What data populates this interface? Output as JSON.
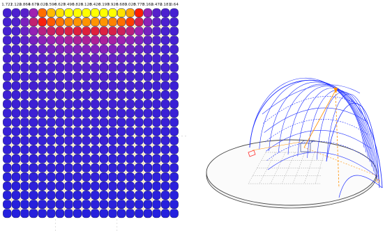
{
  "heatmap": {
    "top_labels": [
      "1.722",
      "1.122",
      "0.864",
      "0.679",
      "0.021",
      "0.596",
      "0.627",
      "0.496",
      "0.826",
      "0.128",
      "0.426",
      "0.197",
      "0.926",
      "0.680",
      "0.028",
      "0.773",
      "0.162",
      "0.472",
      "0.181",
      "0.64"
    ],
    "values": [
      [
        0.1,
        0.12,
        0.15,
        0.35,
        0.7,
        0.78,
        0.82,
        0.85,
        0.86,
        0.86,
        0.86,
        0.86,
        0.85,
        0.82,
        0.76,
        0.62,
        0.32,
        0.15,
        0.12,
        0.1
      ],
      [
        0.1,
        0.13,
        0.25,
        0.45,
        0.6,
        0.68,
        0.71,
        0.73,
        0.74,
        0.74,
        0.74,
        0.74,
        0.72,
        0.7,
        0.65,
        0.5,
        0.3,
        0.18,
        0.12,
        0.1
      ],
      [
        0.1,
        0.12,
        0.2,
        0.32,
        0.42,
        0.47,
        0.5,
        0.52,
        0.53,
        0.53,
        0.53,
        0.52,
        0.51,
        0.48,
        0.43,
        0.35,
        0.24,
        0.16,
        0.11,
        0.1
      ],
      [
        0.1,
        0.11,
        0.16,
        0.24,
        0.3,
        0.34,
        0.36,
        0.38,
        0.39,
        0.39,
        0.39,
        0.38,
        0.37,
        0.35,
        0.31,
        0.26,
        0.19,
        0.14,
        0.11,
        0.1
      ],
      [
        0.1,
        0.11,
        0.13,
        0.17,
        0.21,
        0.24,
        0.26,
        0.27,
        0.28,
        0.28,
        0.28,
        0.28,
        0.27,
        0.25,
        0.22,
        0.19,
        0.15,
        0.12,
        0.1,
        0.1
      ],
      [
        0.1,
        0.1,
        0.11,
        0.13,
        0.15,
        0.17,
        0.18,
        0.19,
        0.2,
        0.2,
        0.2,
        0.2,
        0.19,
        0.18,
        0.16,
        0.14,
        0.12,
        0.11,
        0.1,
        0.1
      ],
      [
        0.09,
        0.1,
        0.1,
        0.11,
        0.12,
        0.13,
        0.14,
        0.15,
        0.15,
        0.15,
        0.15,
        0.15,
        0.15,
        0.14,
        0.12,
        0.11,
        0.1,
        0.1,
        0.1,
        0.09
      ],
      [
        0.09,
        0.09,
        0.1,
        0.1,
        0.11,
        0.11,
        0.12,
        0.12,
        0.13,
        0.13,
        0.13,
        0.13,
        0.12,
        0.12,
        0.11,
        0.1,
        0.1,
        0.1,
        0.09,
        0.09
      ],
      [
        0.08,
        0.09,
        0.09,
        0.1,
        0.1,
        0.1,
        0.11,
        0.11,
        0.11,
        0.11,
        0.11,
        0.11,
        0.11,
        0.1,
        0.1,
        0.1,
        0.09,
        0.09,
        0.09,
        0.08
      ],
      [
        0.08,
        0.08,
        0.09,
        0.09,
        0.09,
        0.1,
        0.1,
        0.1,
        0.1,
        0.1,
        0.1,
        0.1,
        0.1,
        0.1,
        0.09,
        0.09,
        0.09,
        0.08,
        0.08,
        0.08
      ],
      [
        0.07,
        0.08,
        0.08,
        0.08,
        0.09,
        0.09,
        0.09,
        0.09,
        0.09,
        0.09,
        0.09,
        0.09,
        0.09,
        0.09,
        0.09,
        0.08,
        0.08,
        0.08,
        0.08,
        0.07
      ],
      [
        0.07,
        0.07,
        0.08,
        0.08,
        0.08,
        0.08,
        0.08,
        0.08,
        0.08,
        0.08,
        0.08,
        0.08,
        0.08,
        0.08,
        0.08,
        0.08,
        0.08,
        0.07,
        0.07,
        0.07
      ],
      [
        0.06,
        0.07,
        0.07,
        0.07,
        0.07,
        0.07,
        0.08,
        0.08,
        0.08,
        0.08,
        0.08,
        0.08,
        0.08,
        0.07,
        0.07,
        0.07,
        0.07,
        0.07,
        0.07,
        0.06
      ],
      [
        0.06,
        0.06,
        0.06,
        0.07,
        0.07,
        0.07,
        0.07,
        0.07,
        0.07,
        0.07,
        0.07,
        0.07,
        0.07,
        0.07,
        0.07,
        0.07,
        0.06,
        0.06,
        0.06,
        0.06
      ],
      [
        0.05,
        0.06,
        0.06,
        0.06,
        0.06,
        0.06,
        0.06,
        0.07,
        0.07,
        0.07,
        0.07,
        0.07,
        0.06,
        0.06,
        0.06,
        0.06,
        0.06,
        0.06,
        0.06,
        0.05
      ],
      [
        0.05,
        0.05,
        0.05,
        0.06,
        0.06,
        0.06,
        0.06,
        0.06,
        0.06,
        0.06,
        0.06,
        0.06,
        0.06,
        0.06,
        0.06,
        0.06,
        0.05,
        0.05,
        0.05,
        0.05
      ],
      [
        0.04,
        0.05,
        0.05,
        0.05,
        0.05,
        0.05,
        0.05,
        0.05,
        0.06,
        0.06,
        0.06,
        0.05,
        0.05,
        0.05,
        0.05,
        0.05,
        0.05,
        0.05,
        0.05,
        0.04
      ],
      [
        0.04,
        0.04,
        0.04,
        0.05,
        0.05,
        0.05,
        0.05,
        0.05,
        0.05,
        0.05,
        0.05,
        0.05,
        0.05,
        0.05,
        0.05,
        0.05,
        0.04,
        0.04,
        0.04,
        0.04
      ],
      [
        0.03,
        0.04,
        0.04,
        0.04,
        0.04,
        0.04,
        0.04,
        0.04,
        0.05,
        0.05,
        0.05,
        0.04,
        0.04,
        0.04,
        0.04,
        0.04,
        0.04,
        0.04,
        0.04,
        0.03
      ],
      [
        0.03,
        0.03,
        0.03,
        0.04,
        0.04,
        0.04,
        0.04,
        0.04,
        0.04,
        0.04,
        0.04,
        0.04,
        0.04,
        0.04,
        0.04,
        0.04,
        0.03,
        0.03,
        0.03,
        0.03
      ],
      [
        0.02,
        0.03,
        0.03,
        0.03,
        0.03,
        0.03,
        0.03,
        0.03,
        0.03,
        0.03,
        0.03,
        0.03,
        0.03,
        0.03,
        0.03,
        0.03,
        0.03,
        0.03,
        0.03,
        0.02
      ],
      [
        0.02,
        0.02,
        0.02,
        0.02,
        0.03,
        0.03,
        0.03,
        0.03,
        0.03,
        0.03,
        0.03,
        0.03,
        0.03,
        0.03,
        0.03,
        0.02,
        0.02,
        0.02,
        0.02,
        0.02
      ],
      [
        0.01,
        0.01,
        0.02,
        0.02,
        0.02,
        0.02,
        0.02,
        0.02,
        0.02,
        0.02,
        0.02,
        0.02,
        0.02,
        0.02,
        0.02,
        0.02,
        0.02,
        0.01,
        0.01,
        0.01
      ]
    ],
    "colors": {
      "low": "#2020e0",
      "mid": "#a020b0",
      "high": "#ff2000",
      "peak": "#ffff00",
      "marker": "#ffd080"
    }
  },
  "dome_view": {
    "wire_color": "#2030ff",
    "annotation_color": "#ff9000",
    "base_color": "#404040",
    "highlight_color": "#ff3030"
  }
}
